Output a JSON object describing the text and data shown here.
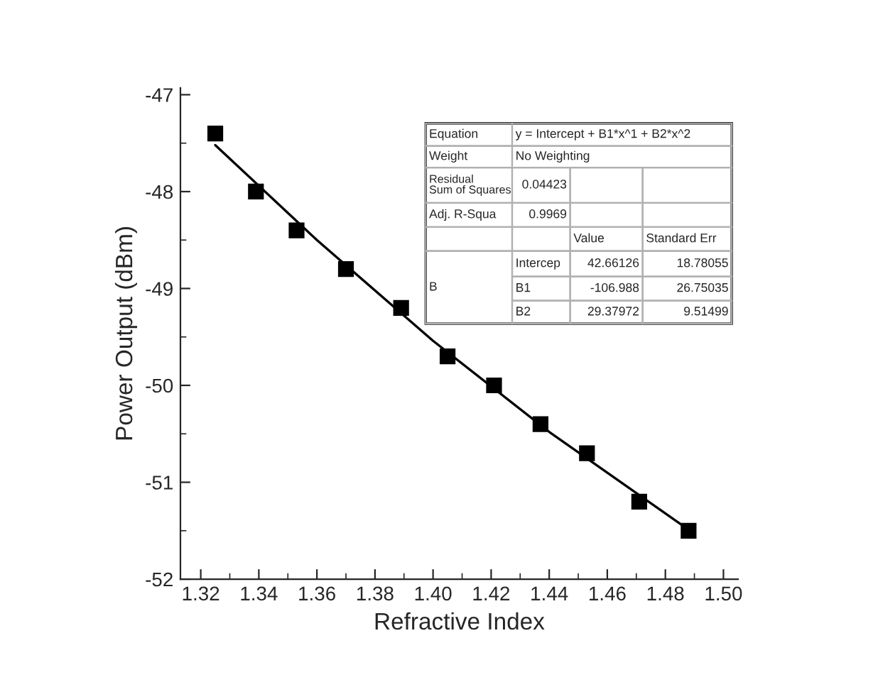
{
  "chart_data": {
    "type": "scatter",
    "xlabel": "Refractive Index",
    "ylabel": "Power Output (dBm)",
    "x": [
      1.325,
      1.339,
      1.353,
      1.37,
      1.389,
      1.405,
      1.421,
      1.437,
      1.453,
      1.471,
      1.488
    ],
    "series": [
      {
        "color": "#000000",
        "marker": "square",
        "values": [
          -47.4,
          -48.0,
          -48.4,
          -48.8,
          -49.2,
          -49.7,
          -50.0,
          -50.4,
          -50.7,
          -51.2,
          -51.5
        ]
      },
      {
        "type": "line",
        "color": "#000000",
        "marker": "none",
        "line_style": "solid",
        "x": [
          1.325,
          1.36,
          1.4,
          1.44,
          1.488
        ],
        "values": [
          -47.52,
          -48.5,
          -49.54,
          -50.48,
          -51.49
        ]
      }
    ],
    "xlim": [
      1.313,
      1.505
    ],
    "ylim": [
      -52,
      -46.93
    ],
    "xticks": [
      1.32,
      1.34,
      1.36,
      1.38,
      {
        "value": 1.4,
        "label": "1.40"
      },
      1.42,
      1.44,
      1.46,
      1.48,
      {
        "value": 1.5,
        "label": "1.50"
      }
    ],
    "yticks": [
      -52,
      -51,
      -50,
      -49,
      -48,
      -47
    ],
    "grid": false,
    "legend": false,
    "annotations": [
      "Equation",
      "y = Intercept + B1*x^1 + B2*x^2",
      "Weight",
      "No Weighting",
      "Residual Sum of Squares",
      "0.04423",
      "Adj. R-Squa",
      "0.9969",
      "Value",
      "Standard Err",
      "B",
      "Intercep",
      "42.66126",
      "18.78055",
      "B1",
      "-106.988",
      "26.75035",
      "B2",
      "29.37972",
      "9.51499"
    ]
  }
}
